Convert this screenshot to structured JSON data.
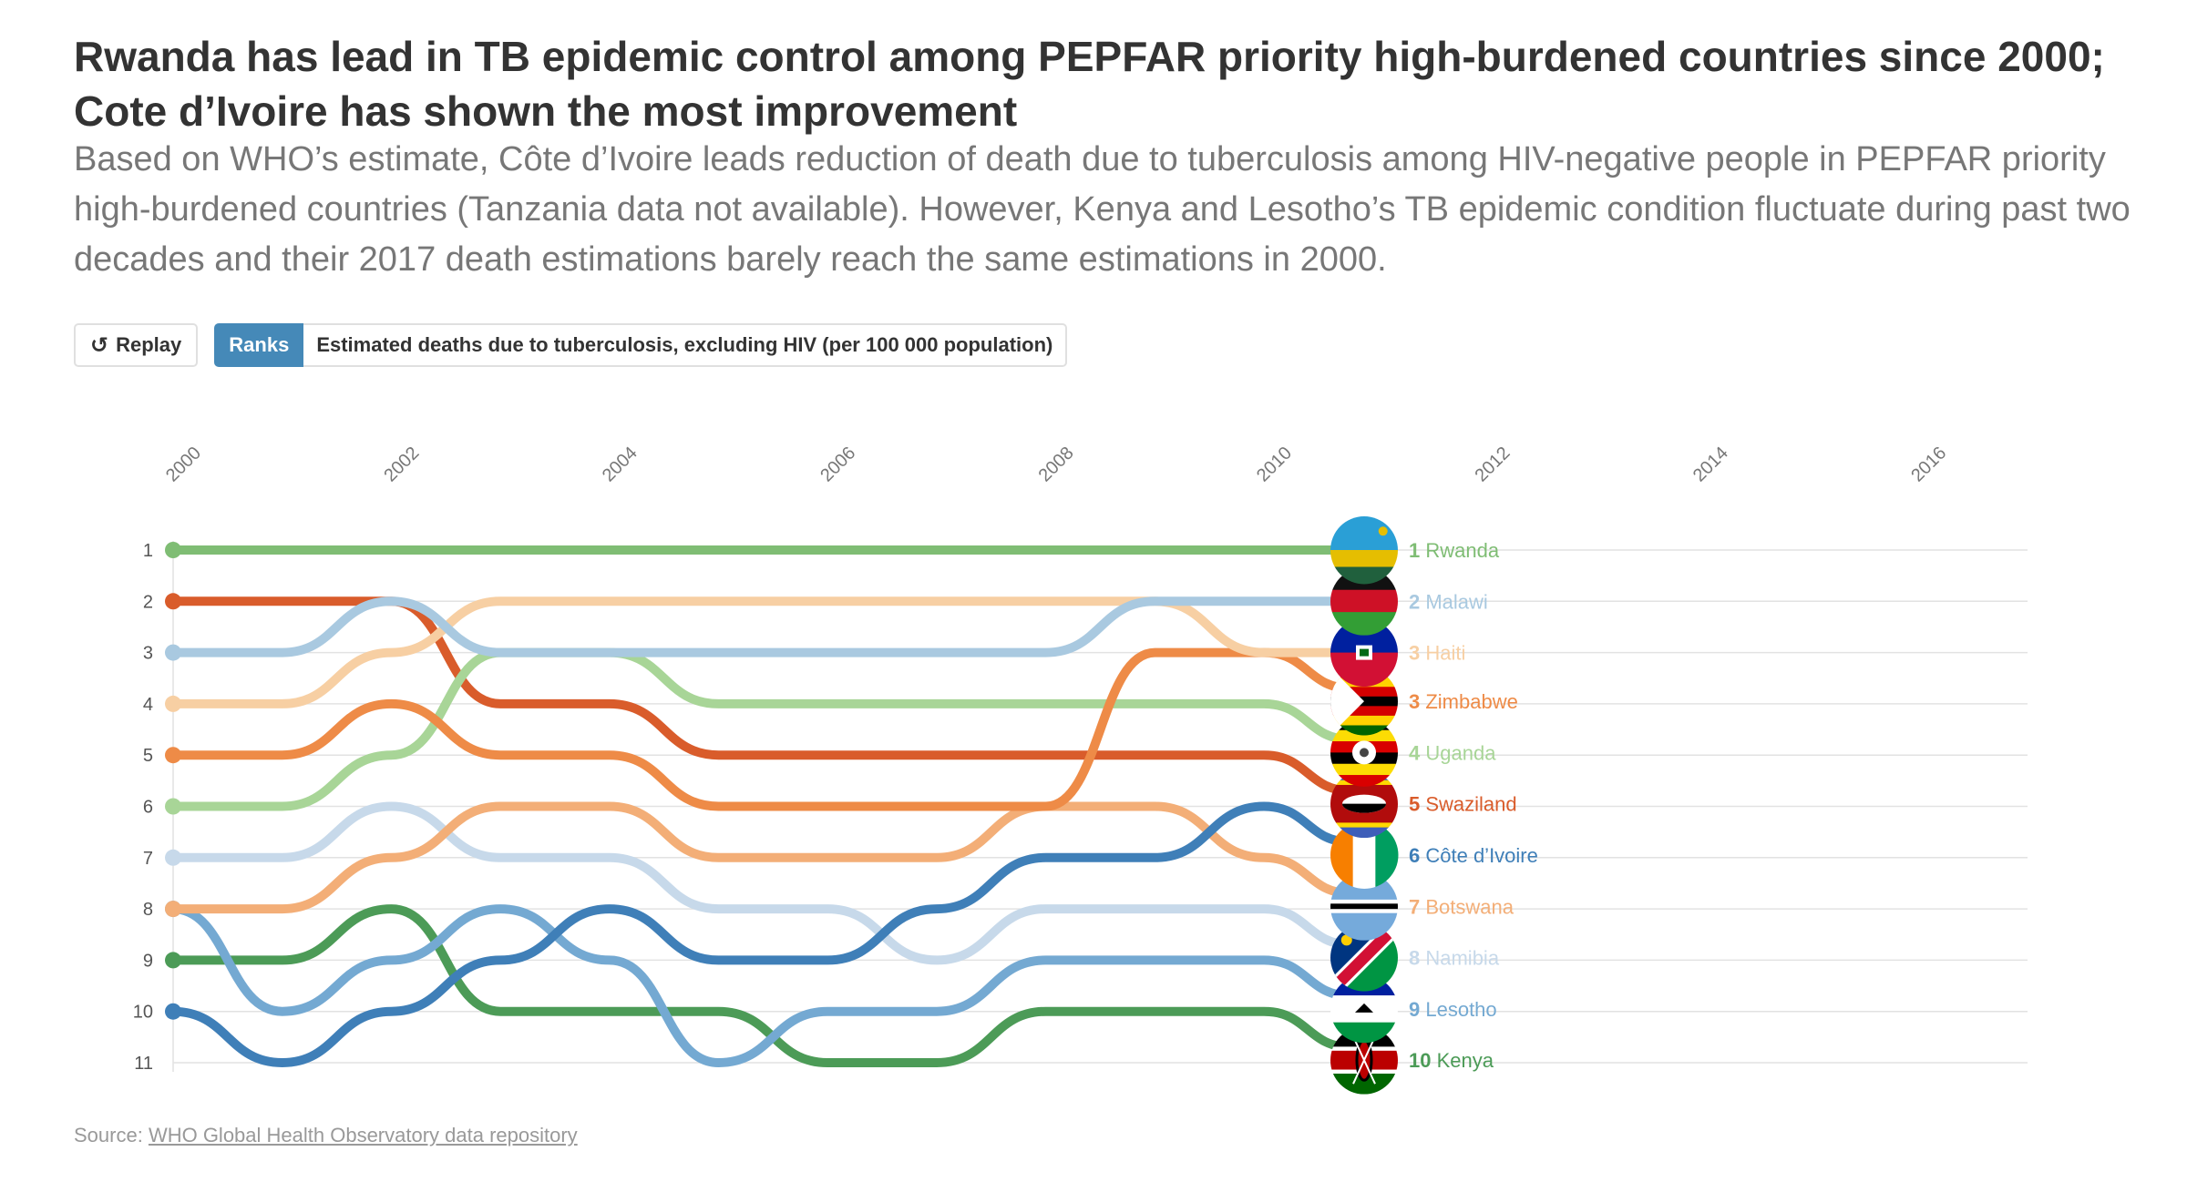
{
  "title_line1": "Rwanda has lead in TB epidemic control among PEPFAR priority high-burdened countries since 2000;",
  "title_line2": "Cote d’Ivoire has shown the most improvement",
  "subtitle": "Based on WHO’s estimate, Côte d’Ivoire leads reduction of death due to tuberculosis among HIV-negative people in PEPFAR priority high-burdened countries (Tanzania data not available). However, Kenya and Lesotho’s TB epidemic condition fluctuate during past two decades and their 2017 death estimations barely reach the same estimations in 2000.",
  "controls": {
    "replay_label": "Replay",
    "replay_icon": "replay-icon",
    "ranks_label": "Ranks",
    "metric_label": "Estimated deaths due to tuberculosis, excluding HIV (per 100 000 population)"
  },
  "source_prefix": "Source: ",
  "source_link": "WHO Global Health Observatory data repository",
  "chart_data": {
    "type": "line",
    "chart_kind": "bump chart (ranks over time, animated)",
    "x_ticks": [
      "2000",
      "2002",
      "2004",
      "2006",
      "2008",
      "2010",
      "2012",
      "2014",
      "2016"
    ],
    "x_range": [
      2000,
      2017
    ],
    "y_ticks": [
      "1",
      "2",
      "3",
      "4",
      "5",
      "6",
      "7",
      "8",
      "9",
      "10",
      "11"
    ],
    "y_range": [
      1,
      11
    ],
    "y_reversed": true,
    "grid": "horizontal",
    "current_year": 2010.8,
    "years": [
      2000,
      2001,
      2002,
      2003,
      2004,
      2005,
      2006,
      2007,
      2008,
      2009,
      2010,
      2010.8
    ],
    "series": [
      {
        "name": "Rwanda",
        "color": "#7fbd74",
        "flag": "rwanda-flag",
        "label_rank": "1",
        "ranks": [
          1,
          1,
          1,
          1,
          1,
          1,
          1,
          1,
          1,
          1,
          1,
          1
        ]
      },
      {
        "name": "Malawi",
        "color": "#a9c9e0",
        "flag": "malawi-flag",
        "label_rank": "2",
        "ranks": [
          3,
          3,
          2,
          3,
          3,
          3,
          3,
          3,
          3,
          2,
          2,
          2
        ]
      },
      {
        "name": "Haiti",
        "color": "#f7cfa3",
        "flag": "haiti-flag",
        "label_rank": "3",
        "ranks": [
          4,
          4,
          3,
          2,
          2,
          2,
          2,
          2,
          2,
          2,
          3,
          3
        ]
      },
      {
        "name": "Zimbabwe",
        "color": "#ee8b47",
        "flag": "zimbabwe-flag",
        "label_rank": "3",
        "ranks": [
          5,
          5,
          4,
          5,
          5,
          6,
          6,
          6,
          6,
          3,
          3,
          3.7
        ]
      },
      {
        "name": "Uganda",
        "color": "#a8d597",
        "flag": "uganda-flag",
        "label_rank": "4",
        "ranks": [
          6,
          6,
          5,
          3,
          3,
          4,
          4,
          4,
          4,
          4,
          4,
          4.7
        ]
      },
      {
        "name": "Swaziland",
        "color": "#d95c2b",
        "flag": "swaziland-flag",
        "label_rank": "5",
        "ranks": [
          2,
          2,
          2,
          4,
          4,
          5,
          5,
          5,
          5,
          5,
          5,
          5.7
        ]
      },
      {
        "name": "Côte d’Ivoire",
        "color": "#3f7fb8",
        "flag": "cote-divoire-flag",
        "label_rank": "6",
        "ranks": [
          10,
          11,
          10,
          9,
          8,
          9,
          9,
          8,
          7,
          7,
          6,
          6.7
        ]
      },
      {
        "name": "Botswana",
        "color": "#f3ae77",
        "flag": "botswana-flag",
        "label_rank": "7",
        "ranks": [
          8,
          8,
          7,
          6,
          6,
          7,
          7,
          7,
          6,
          6,
          7,
          7.7
        ]
      },
      {
        "name": "Namibia",
        "color": "#c7d9ea",
        "flag": "namibia-flag",
        "label_rank": "8",
        "ranks": [
          7,
          7,
          6,
          7,
          7,
          8,
          8,
          9,
          8,
          8,
          8,
          8.7
        ]
      },
      {
        "name": "Lesotho",
        "color": "#74a9d2",
        "flag": "lesotho-flag",
        "label_rank": "9",
        "ranks": [
          8,
          10,
          9,
          8,
          9,
          11,
          10,
          10,
          9,
          9,
          9,
          9.7
        ]
      },
      {
        "name": "Kenya",
        "color": "#4c9b57",
        "flag": "kenya-flag",
        "label_rank": "10",
        "ranks": [
          9,
          9,
          8,
          10,
          10,
          10,
          11,
          11,
          10,
          10,
          10,
          10.7
        ]
      }
    ],
    "end_labels": [
      {
        "rank": "1",
        "name": "Rwanda",
        "color": "#7fbd74",
        "flag": "rwanda-flag",
        "slot": 1
      },
      {
        "rank": "2",
        "name": "Malawi",
        "color": "#a9c9e0",
        "flag": "malawi-flag",
        "slot": 2
      },
      {
        "rank": "3",
        "name": "Haiti",
        "color": "#f7cfa3",
        "flag": "haiti-flag",
        "slot": 3
      },
      {
        "rank": "3",
        "name": "Zimbabwe",
        "color": "#ee8b47",
        "flag": "zimbabwe-flag",
        "slot": 3.95
      },
      {
        "rank": "4",
        "name": "Uganda",
        "color": "#a8d597",
        "flag": "uganda-flag",
        "slot": 4.95
      },
      {
        "rank": "5",
        "name": "Swaziland",
        "color": "#d95c2b",
        "flag": "swaziland-flag",
        "slot": 5.95
      },
      {
        "rank": "6",
        "name": "Côte d’Ivoire",
        "color": "#3f7fb8",
        "flag": "cote-divoire-flag",
        "slot": 6.95
      },
      {
        "rank": "7",
        "name": "Botswana",
        "color": "#f3ae77",
        "flag": "botswana-flag",
        "slot": 7.95
      },
      {
        "rank": "8",
        "name": "Namibia",
        "color": "#c7d9ea",
        "flag": "namibia-flag",
        "slot": 8.95
      },
      {
        "rank": "9",
        "name": "Lesotho",
        "color": "#74a9d2",
        "flag": "lesotho-flag",
        "slot": 9.95
      },
      {
        "rank": "10",
        "name": "Kenya",
        "color": "#4c9b57",
        "flag": "kenya-flag",
        "slot": 10.95
      }
    ]
  }
}
